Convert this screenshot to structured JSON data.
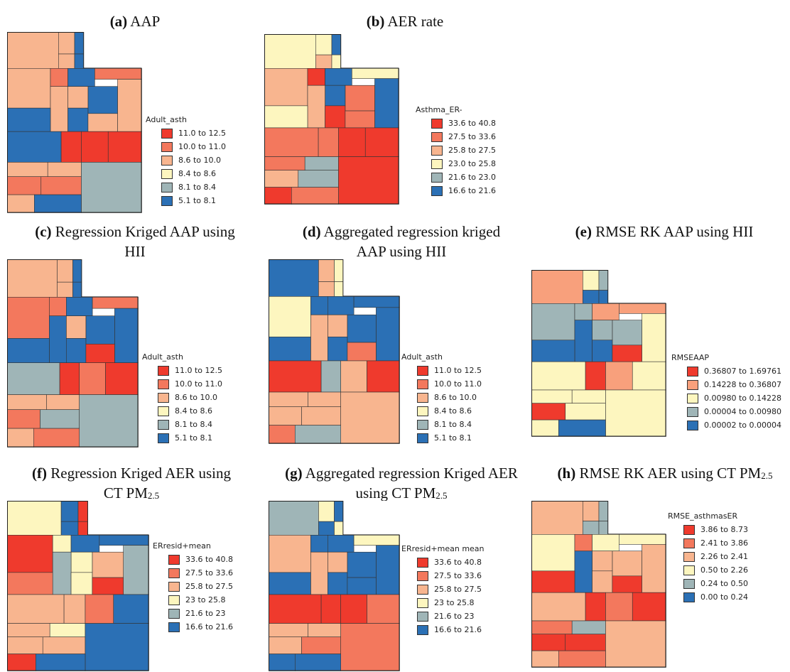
{
  "panels": [
    {
      "tag": "(a)",
      "caption": "AAP",
      "legend_title": "Adult_asth",
      "legend": [
        {
          "label": "11.0 to 12.5",
          "color": "#ef3a2d"
        },
        {
          "label": "10.0 to 11.0",
          "color": "#f3785d"
        },
        {
          "label": "8.6 to 10.0",
          "color": "#f8b58f"
        },
        {
          "label": "8.4 to 8.6",
          "color": "#fdf6bf"
        },
        {
          "label": "8.1 to 8.4",
          "color": "#9fb5b7"
        },
        {
          "label": "5.1 to 8.1",
          "color": "#2b70b5"
        }
      ]
    },
    {
      "tag": "(b)",
      "caption": "AER rate",
      "legend_title": "Asthma_ER-",
      "legend": [
        {
          "label": "33.6 to 40.8",
          "color": "#ef3a2d"
        },
        {
          "label": "27.5 to 33.6",
          "color": "#f3785d"
        },
        {
          "label": "25.8 to 27.5",
          "color": "#f8b58f"
        },
        {
          "label": "23.0 to 25.8",
          "color": "#fdf6bf"
        },
        {
          "label": "21.6 to 23.0",
          "color": "#9fb5b7"
        },
        {
          "label": "16.6 to 21.6",
          "color": "#2b70b5"
        }
      ]
    },
    {
      "tag": "(c)",
      "caption": "Regression Kriged AAP using HII",
      "legend_title": "Adult_asth",
      "legend": [
        {
          "label": "11.0 to 12.5",
          "color": "#ef3a2d"
        },
        {
          "label": "10.0 to 11.0",
          "color": "#f3785d"
        },
        {
          "label": "8.6 to 10.0",
          "color": "#f8b58f"
        },
        {
          "label": "8.4 to 8.6",
          "color": "#fdf6bf"
        },
        {
          "label": "8.1 to 8.4",
          "color": "#9fb5b7"
        },
        {
          "label": "5.1 to 8.1",
          "color": "#2b70b5"
        }
      ]
    },
    {
      "tag": "(d)",
      "caption": "Aggregated regression kriged AAP using HII",
      "legend_title": "Adult_asth",
      "legend": [
        {
          "label": "11.0 to 12.5",
          "color": "#ef3a2d"
        },
        {
          "label": "10.0 to 11.0",
          "color": "#f3785d"
        },
        {
          "label": "8.6 to 10.0",
          "color": "#f8b58f"
        },
        {
          "label": "8.4 to 8.6",
          "color": "#fdf6bf"
        },
        {
          "label": "8.1 to 8.4",
          "color": "#9fb5b7"
        },
        {
          "label": "5.1 to 8.1",
          "color": "#2b70b5"
        }
      ]
    },
    {
      "tag": "(e)",
      "caption": "RMSE RK AAP using HII",
      "legend_title": "RMSEAAP",
      "legend": [
        {
          "label": "0.36807 to 1.69761",
          "color": "#ef3a2d"
        },
        {
          "label": "0.14228 to 0.36807",
          "color": "#f8a07c"
        },
        {
          "label": "0.00980 to 0.14228",
          "color": "#fdf6bf"
        },
        {
          "label": "0.00004 to 0.00980",
          "color": "#9fb5b7"
        },
        {
          "label": "0.00002 to 0.00004",
          "color": "#2b70b5"
        }
      ]
    },
    {
      "tag": "(f)",
      "caption": "Regression Kriged AER using CT PM",
      "caption_sub": "2.5",
      "legend_title": "ERresid+mean",
      "legend": [
        {
          "label": "33.6 to 40.8",
          "color": "#ef3a2d"
        },
        {
          "label": "27.5 to 33.6",
          "color": "#f3785d"
        },
        {
          "label": "25.8 to 27.5",
          "color": "#f8b58f"
        },
        {
          "label": "23 to 25.8",
          "color": "#fdf6bf"
        },
        {
          "label": "21.6 to 23",
          "color": "#9fb5b7"
        },
        {
          "label": "16.6 to 21.6",
          "color": "#2b70b5"
        }
      ]
    },
    {
      "tag": "(g)",
      "caption": "Aggregated regression Kriged AER using CT PM",
      "caption_sub": "2.5",
      "legend_title": "ERresid+mean mean",
      "legend": [
        {
          "label": "33.6 to 40.8",
          "color": "#ef3a2d"
        },
        {
          "label": "27.5 to 33.6",
          "color": "#f3785d"
        },
        {
          "label": "25.8 to 27.5",
          "color": "#f8b58f"
        },
        {
          "label": "23 to 25.8",
          "color": "#fdf6bf"
        },
        {
          "label": "21.6 to 23",
          "color": "#9fb5b7"
        },
        {
          "label": "16.6 to 21.6",
          "color": "#2b70b5"
        }
      ]
    },
    {
      "tag": "(h)",
      "caption": "RMSE RK AER using CT PM",
      "caption_sub": "2.5",
      "legend_title": "RMSE_asthmasER",
      "legend": [
        {
          "label": "3.86 to 8.73",
          "color": "#ef3a2d"
        },
        {
          "label": "2.41 to 3.86",
          "color": "#f3785d"
        },
        {
          "label": "2.26 to 2.41",
          "color": "#f8b58f"
        },
        {
          "label": "0.50 to 2.26",
          "color": "#fdf6bf"
        },
        {
          "label": "0.24 to 0.50",
          "color": "#9fb5b7"
        },
        {
          "label": "0.00 to 0.24",
          "color": "#2b70b5"
        }
      ]
    }
  ]
}
